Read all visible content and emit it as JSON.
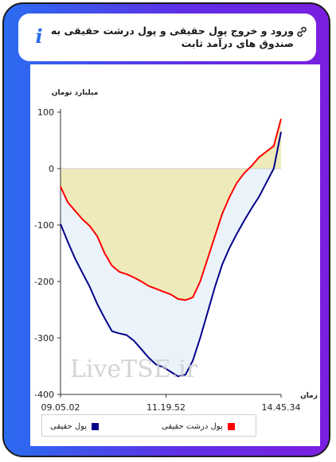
{
  "header": {
    "title": "ورود و خروج پول حقیقی و پول درشت حقیقی به صندوق های درآمد ثابت",
    "info_icon": "info-icon",
    "link_icon": "link-icon"
  },
  "watermark": "LiveTSE.ir",
  "colors": {
    "frame_start": "#2a6cf0",
    "frame_end": "#7a1fe0",
    "real": "#00008b",
    "big_real": "#ff0000",
    "fill_real": "#eaf3fa",
    "fill_big": "#efeab9"
  },
  "chart_data": {
    "type": "area",
    "ylabel": "میلیارد تومان",
    "xlabel": "زمان",
    "ylim": [
      -400,
      100
    ],
    "yticks": [
      100,
      0,
      -100,
      -200,
      -300,
      -400
    ],
    "xticks": [
      "09.05.02",
      "11.19.52",
      "14.45.34"
    ],
    "grid": false,
    "legend_position": "bottom",
    "series": [
      {
        "name": "پول حقیقی",
        "color": "#00008b",
        "values": [
          -98,
          -130,
          -160,
          -185,
          -210,
          -240,
          -265,
          -288,
          -292,
          -295,
          -305,
          -320,
          -335,
          -347,
          -352,
          -360,
          -368,
          -365,
          -340,
          -300,
          -255,
          -210,
          -170,
          -140,
          -115,
          -92,
          -70,
          -50,
          -25,
          0,
          65
        ]
      },
      {
        "name": "پول درشت حقیقی",
        "color": "#ff0000",
        "values": [
          -32,
          -60,
          -75,
          -90,
          -102,
          -120,
          -150,
          -172,
          -183,
          -187,
          -193,
          -200,
          -208,
          -213,
          -218,
          -223,
          -231,
          -233,
          -228,
          -200,
          -160,
          -120,
          -80,
          -50,
          -25,
          -8,
          5,
          20,
          30,
          40,
          88
        ]
      }
    ]
  },
  "legend": [
    {
      "label": "پول درشت حقیقی",
      "color": "#ff0000"
    },
    {
      "label": "پول حقیقی",
      "color": "#00008b"
    }
  ]
}
